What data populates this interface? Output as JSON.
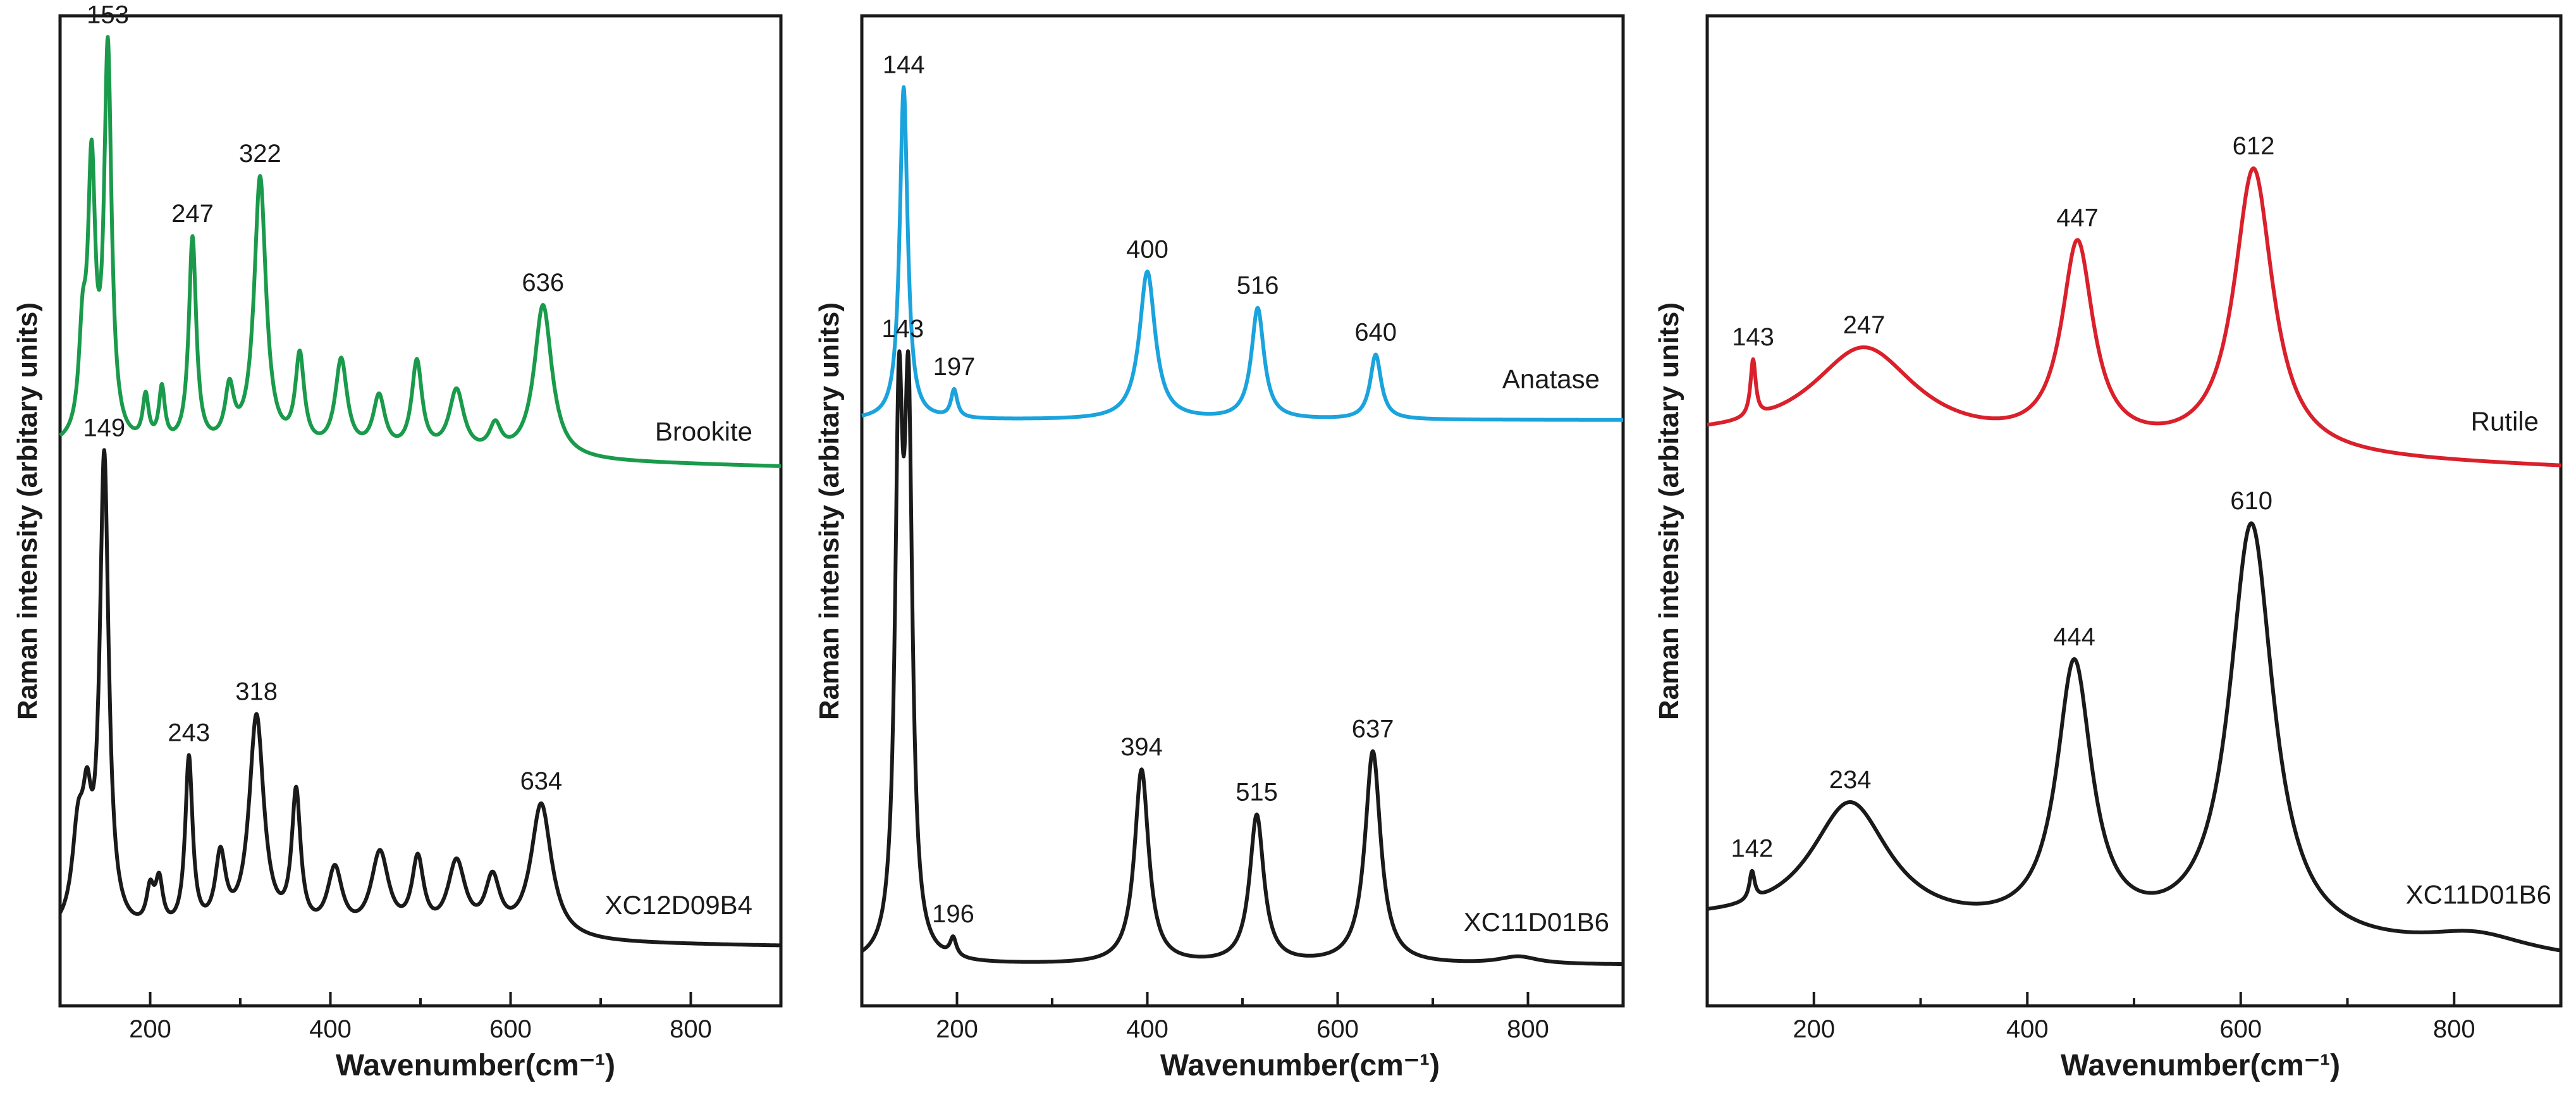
{
  "chart_data": [
    {
      "type": "line",
      "title": "",
      "xlabel": "Wavenumber(cm⁻¹)",
      "ylabel": "Raman intensity (arbitary units)",
      "xlim": [
        100,
        900
      ],
      "ylim": [
        0,
        100
      ],
      "xticks": [
        200,
        400,
        600,
        800
      ],
      "grid": false,
      "series": [
        {
          "name": "Brookite",
          "color": "#1a9a4b",
          "baseline_start": 56,
          "baseline_end": 54,
          "peaks": [
            {
              "x": 125,
              "h": 10,
              "w": 5
            },
            {
              "x": 135,
              "h": 29,
              "w": 5
            },
            {
              "x": 153,
              "h": 43,
              "w": 5
            },
            {
              "x": 195,
              "h": 5,
              "w": 4
            },
            {
              "x": 213,
              "h": 6,
              "w": 4
            },
            {
              "x": 247,
              "h": 23,
              "w": 5
            },
            {
              "x": 288,
              "h": 6,
              "w": 6
            },
            {
              "x": 322,
              "h": 30,
              "w": 8
            },
            {
              "x": 366,
              "h": 10,
              "w": 6
            },
            {
              "x": 412,
              "h": 10,
              "w": 8
            },
            {
              "x": 454,
              "h": 6,
              "w": 8
            },
            {
              "x": 496,
              "h": 10,
              "w": 7
            },
            {
              "x": 540,
              "h": 7,
              "w": 10
            },
            {
              "x": 583,
              "h": 3,
              "w": 8
            },
            {
              "x": 636,
              "h": 17,
              "w": 12
            }
          ],
          "labels": [
            {
              "x": 153,
              "text": "153"
            },
            {
              "x": 247,
              "text": "247"
            },
            {
              "x": 322,
              "text": "322"
            },
            {
              "x": 636,
              "text": "636"
            }
          ],
          "name_label": "Brookite"
        },
        {
          "name": "XC12D09B4",
          "color": "#1a1a1a",
          "baseline_start": 2,
          "baseline_end": 1,
          "peaks": [
            {
              "x": 120,
              "h": 10,
              "w": 8
            },
            {
              "x": 130,
              "h": 10,
              "w": 6
            },
            {
              "x": 149,
              "h": 52,
              "w": 6
            },
            {
              "x": 200,
              "h": 4,
              "w": 5
            },
            {
              "x": 210,
              "h": 5,
              "w": 5
            },
            {
              "x": 243,
              "h": 19,
              "w": 5
            },
            {
              "x": 278,
              "h": 8,
              "w": 7
            },
            {
              "x": 318,
              "h": 24,
              "w": 10
            },
            {
              "x": 362,
              "h": 15,
              "w": 6
            },
            {
              "x": 405,
              "h": 7,
              "w": 10
            },
            {
              "x": 455,
              "h": 9,
              "w": 12
            },
            {
              "x": 497,
              "h": 8,
              "w": 8
            },
            {
              "x": 540,
              "h": 8,
              "w": 12
            },
            {
              "x": 580,
              "h": 6,
              "w": 10
            },
            {
              "x": 634,
              "h": 15,
              "w": 14
            }
          ],
          "labels": [
            {
              "x": 149,
              "text": "149"
            },
            {
              "x": 243,
              "text": "243"
            },
            {
              "x": 318,
              "text": "318"
            },
            {
              "x": 634,
              "text": "634"
            }
          ],
          "name_label": "XC12D09B4"
        }
      ]
    },
    {
      "type": "line",
      "title": "",
      "xlabel": "Wavenumber(cm⁻¹)",
      "ylabel": "Raman intensity (arbitary units)",
      "xlim": [
        100,
        900
      ],
      "ylim": [
        0,
        100
      ],
      "xticks": [
        200,
        400,
        600,
        800
      ],
      "grid": false,
      "series": [
        {
          "name": "Anatase",
          "color": "#1aa3dc",
          "baseline_start": 60,
          "baseline_end": 60,
          "peaks": [
            {
              "x": 144,
              "h": 36,
              "w": 5
            },
            {
              "x": 197,
              "h": 3,
              "w": 4
            },
            {
              "x": 400,
              "h": 16,
              "w": 10
            },
            {
              "x": 516,
              "h": 12,
              "w": 8
            },
            {
              "x": 640,
              "h": 7,
              "w": 7
            }
          ],
          "labels": [
            {
              "x": 144,
              "text": "144"
            },
            {
              "x": 197,
              "text": "197"
            },
            {
              "x": 400,
              "text": "400"
            },
            {
              "x": 516,
              "text": "516"
            },
            {
              "x": 640,
              "text": "640"
            }
          ],
          "name_label": "Anatase"
        },
        {
          "name": "XC11D01B6",
          "color": "#1a1a1a",
          "baseline_start": 1,
          "baseline_end": 1,
          "peaks": [
            {
              "x": 139,
              "h": 55,
              "w": 5
            },
            {
              "x": 149,
              "h": 55,
              "w": 5
            },
            {
              "x": 196,
              "h": 2,
              "w": 4
            },
            {
              "x": 394,
              "h": 21,
              "w": 9
            },
            {
              "x": 515,
              "h": 16,
              "w": 9
            },
            {
              "x": 637,
              "h": 23,
              "w": 10
            },
            {
              "x": 790,
              "h": 0.8,
              "w": 25
            }
          ],
          "labels": [
            {
              "x": 143,
              "text": "143"
            },
            {
              "x": 196,
              "text": "196"
            },
            {
              "x": 394,
              "text": "394"
            },
            {
              "x": 515,
              "text": "515"
            },
            {
              "x": 637,
              "text": "637"
            }
          ],
          "name_label": "XC11D01B6"
        }
      ]
    },
    {
      "type": "line",
      "title": "",
      "xlabel": "Wavenumber(cm⁻¹)",
      "ylabel": "Raman intensity (arbitary units)",
      "xlim": [
        100,
        900
      ],
      "ylim": [
        0,
        100
      ],
      "xticks": [
        200,
        400,
        600,
        800
      ],
      "grid": false,
      "series": [
        {
          "name": "Rutile",
          "color": "#d9202b",
          "baseline_start": 59,
          "baseline_end": 56,
          "peaks": [
            {
              "x": 143,
              "h": 6,
              "w": 3
            },
            {
              "x": 247,
              "h": 10,
              "w": 60
            },
            {
              "x": 447,
              "h": 21,
              "w": 18
            },
            {
              "x": 612,
              "h": 30,
              "w": 22
            }
          ],
          "labels": [
            {
              "x": 143,
              "text": "143"
            },
            {
              "x": 247,
              "text": "247"
            },
            {
              "x": 447,
              "text": "447"
            },
            {
              "x": 612,
              "text": "612"
            }
          ],
          "name_label": "Rutile"
        },
        {
          "name": "XC11D01B6",
          "color": "#1a1a1a",
          "baseline_start": 8,
          "baseline_end": 4,
          "peaks": [
            {
              "x": 142,
              "h": 3,
              "w": 3
            },
            {
              "x": 234,
              "h": 13,
              "w": 45
            },
            {
              "x": 444,
              "h": 28,
              "w": 20
            },
            {
              "x": 610,
              "h": 44,
              "w": 25
            },
            {
              "x": 820,
              "h": 2,
              "w": 60
            }
          ],
          "labels": [
            {
              "x": 142,
              "text": "142"
            },
            {
              "x": 234,
              "text": "234"
            },
            {
              "x": 444,
              "text": "444"
            },
            {
              "x": 610,
              "text": "610"
            }
          ],
          "name_label": "XC11D01B6"
        }
      ]
    }
  ]
}
